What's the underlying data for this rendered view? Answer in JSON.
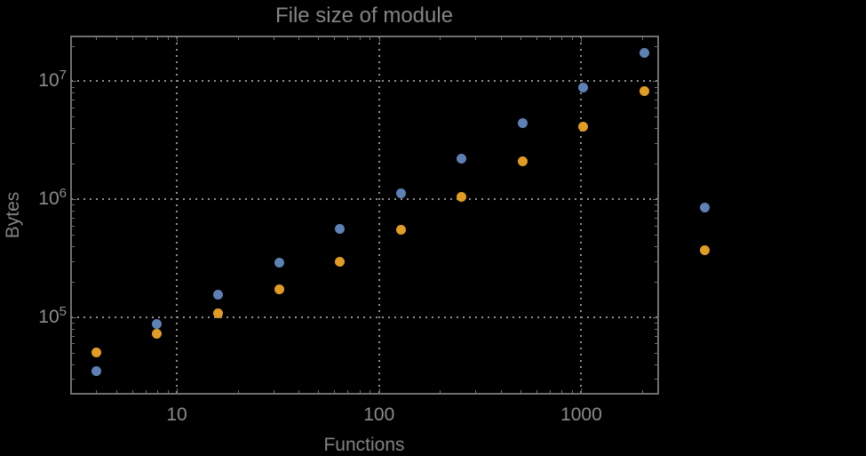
{
  "chart_data": {
    "type": "scatter",
    "title": "File size of module",
    "xlabel": "Functions",
    "ylabel": "Bytes",
    "xscale": "log",
    "yscale": "log",
    "xlim": [
      3,
      2400
    ],
    "ylim": [
      22500,
      24000000
    ],
    "grid": "dotted gray lines at decade ticks, frame on all four sides with inward log minor ticks",
    "legend": "none",
    "xticks": [
      10,
      100,
      1000
    ],
    "xtick_labels": [
      "10",
      "100",
      "1000"
    ],
    "yticks": [
      100000,
      1000000,
      10000000
    ],
    "ytick_labels": [
      {
        "base": "10",
        "exp": "5"
      },
      {
        "base": "10",
        "exp": "6"
      },
      {
        "base": "10",
        "exp": "7"
      }
    ],
    "layout_hints": "dark background; the two x=4096 points are drawn unclipped outside the right frame edge",
    "series": [
      {
        "name": "series-1-blue",
        "color": "#5e81b5",
        "points": [
          [
            4,
            35000
          ],
          [
            8,
            88000
          ],
          [
            16,
            155000
          ],
          [
            32,
            290000
          ],
          [
            64,
            565000
          ],
          [
            128,
            1120000
          ],
          [
            256,
            2200000
          ],
          [
            512,
            4400000
          ],
          [
            1024,
            8800000
          ],
          [
            2048,
            17300000
          ],
          [
            4096,
            850000
          ]
        ]
      },
      {
        "name": "series-2-orange",
        "color": "#e19c24",
        "points": [
          [
            4,
            50000
          ],
          [
            8,
            72000
          ],
          [
            16,
            108000
          ],
          [
            32,
            173000
          ],
          [
            64,
            298000
          ],
          [
            128,
            550000
          ],
          [
            256,
            1050000
          ],
          [
            512,
            2100000
          ],
          [
            1024,
            4100000
          ],
          [
            2048,
            8200000
          ],
          [
            4096,
            370000
          ]
        ]
      }
    ]
  },
  "colors": {
    "background": "#000000",
    "frame": "#6f6f6f",
    "grid": "#8d8d8d",
    "tick_text": "#8c8c8c",
    "title_text": "#858585",
    "axis_label_text": "#828282",
    "series1": "#5e81b5",
    "series2": "#e19c24"
  }
}
